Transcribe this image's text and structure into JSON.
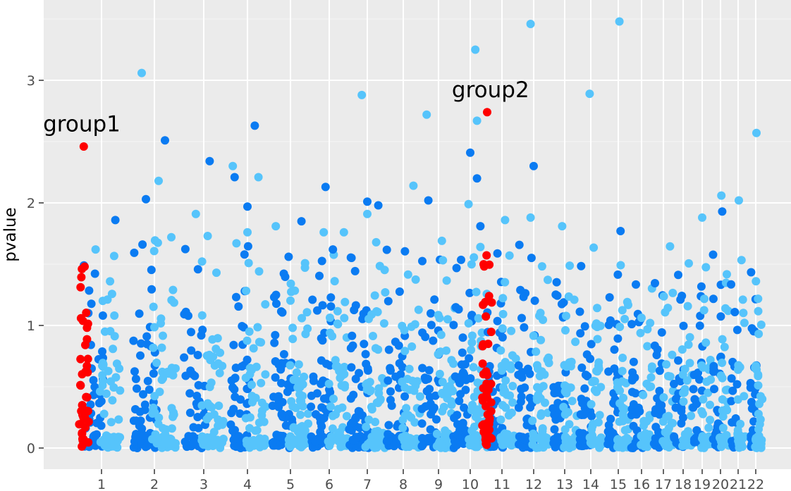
{
  "chart_data": {
    "type": "scatter",
    "title": "",
    "xlabel": "",
    "ylabel": "pvalue",
    "ylim": [
      -0.1,
      3.6
    ],
    "y_ticks": [
      0,
      1,
      2,
      3
    ],
    "grid": true,
    "x_tick_labels": [
      "1",
      "2",
      "3",
      "4",
      "5",
      "6",
      "7",
      "8",
      "9",
      "10",
      "11",
      "12",
      "13",
      "14",
      "15",
      "16",
      "17",
      "18",
      "19",
      "20",
      "21",
      "22"
    ],
    "colors": {
      "dark": "#0a7bf2",
      "light": "#56c4fb",
      "highlight": "#ff0000"
    },
    "clusters": [
      {
        "label": "1",
        "bands": [
          [
            0,
            0.1,
            42
          ],
          [
            0.1,
            0.7,
            42
          ],
          [
            0.7,
            1.3,
            15
          ],
          [
            1.3,
            1.7,
            4
          ]
        ],
        "extra": [
          [
            -0.15,
            1.62
          ],
          [
            0.35,
            1.86
          ]
        ]
      },
      {
        "label": "2",
        "bands": [
          [
            0,
            0.1,
            50
          ],
          [
            0.1,
            0.7,
            52
          ],
          [
            0.7,
            1.3,
            20
          ],
          [
            1.3,
            1.7,
            6
          ]
        ],
        "extra": [
          [
            -0.3,
            3.06
          ],
          [
            -0.2,
            2.03
          ],
          [
            0.1,
            2.18
          ],
          [
            0.25,
            2.51
          ],
          [
            0.4,
            1.72
          ]
        ]
      },
      {
        "label": "3",
        "bands": [
          [
            0,
            0.1,
            42
          ],
          [
            0.1,
            0.7,
            42
          ],
          [
            0.7,
            1.3,
            18
          ],
          [
            1.3,
            1.7,
            4
          ]
        ],
        "extra": [
          [
            -0.2,
            1.91
          ],
          [
            0.15,
            2.34
          ],
          [
            0.1,
            1.73
          ]
        ]
      },
      {
        "label": "4",
        "bands": [
          [
            0,
            0.1,
            42
          ],
          [
            0.1,
            0.7,
            45
          ],
          [
            0.7,
            1.3,
            15
          ],
          [
            1.3,
            1.7,
            4
          ]
        ],
        "extra": [
          [
            -0.4,
            2.3
          ],
          [
            -0.35,
            2.21
          ],
          [
            -0.3,
            1.67
          ],
          [
            0.2,
            2.63
          ],
          [
            0.3,
            2.21
          ],
          [
            0,
            1.97
          ],
          [
            0,
            1.76
          ]
        ]
      },
      {
        "label": "5",
        "bands": [
          [
            0,
            0.1,
            45
          ],
          [
            0.1,
            0.7,
            55
          ],
          [
            0.7,
            1.3,
            18
          ],
          [
            1.3,
            1.7,
            6
          ]
        ],
        "extra": [
          [
            -0.4,
            1.81
          ],
          [
            0.3,
            1.85
          ]
        ]
      },
      {
        "label": "6",
        "bands": [
          [
            0,
            0.1,
            48
          ],
          [
            0.1,
            0.7,
            50
          ],
          [
            0.7,
            1.3,
            20
          ],
          [
            1.3,
            1.7,
            4
          ]
        ],
        "extra": [
          [
            -0.15,
            1.76
          ],
          [
            -0.1,
            2.13
          ],
          [
            0.4,
            1.76
          ],
          [
            0.1,
            1.62
          ]
        ]
      },
      {
        "label": "7",
        "bands": [
          [
            0,
            0.1,
            45
          ],
          [
            0.1,
            0.7,
            50
          ],
          [
            0.7,
            1.3,
            20
          ],
          [
            1.3,
            1.7,
            6
          ]
        ],
        "extra": [
          [
            -0.15,
            2.88
          ],
          [
            0,
            2.01
          ],
          [
            0,
            1.91
          ],
          [
            0.3,
            1.98
          ]
        ]
      },
      {
        "label": "8",
        "bands": [
          [
            0,
            0.1,
            40
          ],
          [
            0.1,
            0.7,
            40
          ],
          [
            0.7,
            1.3,
            14
          ],
          [
            1.3,
            1.7,
            3
          ]
        ],
        "extra": [
          [
            0.3,
            2.14
          ]
        ]
      },
      {
        "label": "9",
        "bands": [
          [
            0,
            0.1,
            42
          ],
          [
            0.1,
            0.7,
            42
          ],
          [
            0.7,
            1.3,
            18
          ],
          [
            1.3,
            1.7,
            3
          ]
        ],
        "extra": [
          [
            -0.35,
            2.72
          ],
          [
            -0.3,
            2.02
          ],
          [
            0.1,
            1.69
          ]
        ]
      },
      {
        "label": "10",
        "bands": [
          [
            0,
            0.1,
            50
          ],
          [
            0.1,
            0.7,
            50
          ],
          [
            0.7,
            1.3,
            20
          ],
          [
            1.3,
            1.7,
            4
          ]
        ],
        "extra": [
          [
            0.15,
            3.25
          ],
          [
            0,
            2.41
          ],
          [
            0.2,
            2.67
          ],
          [
            0.2,
            2.2
          ],
          [
            -0.05,
            1.99
          ],
          [
            0.3,
            1.81
          ],
          [
            0.3,
            1.64
          ]
        ]
      },
      {
        "label": "11",
        "bands": [
          [
            0,
            0.1,
            40
          ],
          [
            0.1,
            0.7,
            40
          ],
          [
            0.7,
            1.3,
            16
          ],
          [
            1.3,
            1.7,
            4
          ]
        ],
        "extra": [
          [
            0.1,
            1.86
          ]
        ]
      },
      {
        "label": "12",
        "bands": [
          [
            0,
            0.1,
            40
          ],
          [
            0.1,
            0.7,
            42
          ],
          [
            0.7,
            1.3,
            16
          ],
          [
            1.3,
            1.7,
            4
          ]
        ],
        "extra": [
          [
            -0.1,
            3.46
          ],
          [
            0,
            2.3
          ],
          [
            -0.1,
            1.88
          ]
        ]
      },
      {
        "label": "13",
        "bands": [
          [
            0,
            0.1,
            35
          ],
          [
            0.1,
            0.7,
            35
          ],
          [
            0.7,
            1.3,
            12
          ],
          [
            1.3,
            1.7,
            2
          ]
        ],
        "extra": [
          [
            -0.1,
            1.81
          ]
        ]
      },
      {
        "label": "14",
        "bands": [
          [
            0,
            0.1,
            35
          ],
          [
            0.1,
            0.7,
            35
          ],
          [
            0.7,
            1.3,
            12
          ],
          [
            1.3,
            1.7,
            2
          ]
        ],
        "extra": [
          [
            -0.05,
            2.89
          ]
        ]
      },
      {
        "label": "15",
        "bands": [
          [
            0,
            0.1,
            35
          ],
          [
            0.1,
            0.7,
            38
          ],
          [
            0.7,
            1.3,
            12
          ],
          [
            1.3,
            1.7,
            2
          ]
        ],
        "extra": [
          [
            0.05,
            3.48
          ],
          [
            0.1,
            1.77
          ]
        ]
      },
      {
        "label": "16",
        "bands": [
          [
            0,
            0.1,
            30
          ],
          [
            0.1,
            0.7,
            30
          ],
          [
            0.7,
            1.3,
            10
          ],
          [
            1.3,
            1.7,
            2
          ]
        ],
        "extra": []
      },
      {
        "label": "17",
        "bands": [
          [
            0,
            0.1,
            30
          ],
          [
            0.1,
            0.7,
            30
          ],
          [
            0.7,
            1.3,
            10
          ],
          [
            1.3,
            1.7,
            2
          ]
        ],
        "extra": []
      },
      {
        "label": "18",
        "bands": [
          [
            0,
            0.1,
            25
          ],
          [
            0.1,
            0.7,
            25
          ],
          [
            0.7,
            1.3,
            8
          ],
          [
            1.3,
            1.7,
            2
          ]
        ],
        "extra": []
      },
      {
        "label": "19",
        "bands": [
          [
            0,
            0.1,
            25
          ],
          [
            0.1,
            0.7,
            25
          ],
          [
            0.7,
            1.3,
            8
          ],
          [
            1.3,
            1.7,
            2
          ]
        ],
        "extra": [
          [
            0,
            1.88
          ]
        ]
      },
      {
        "label": "20",
        "bands": [
          [
            0,
            0.1,
            25
          ],
          [
            0.1,
            0.7,
            25
          ],
          [
            0.7,
            1.3,
            8
          ],
          [
            1.3,
            1.7,
            3
          ]
        ],
        "extra": [
          [
            0.05,
            2.06
          ],
          [
            0.1,
            1.93
          ]
        ]
      },
      {
        "label": "21",
        "bands": [
          [
            0,
            0.1,
            20
          ],
          [
            0.1,
            0.7,
            18
          ],
          [
            0.7,
            1.3,
            6
          ],
          [
            1.3,
            1.7,
            2
          ]
        ],
        "extra": [
          [
            0.05,
            2.02
          ]
        ]
      },
      {
        "label": "22",
        "bands": [
          [
            0,
            0.1,
            25
          ],
          [
            0.1,
            0.7,
            25
          ],
          [
            0.7,
            1.3,
            8
          ],
          [
            1.3,
            1.7,
            2
          ]
        ],
        "extra": [
          [
            0.05,
            2.57
          ]
        ]
      }
    ],
    "highlight_clusters": [
      {
        "group": "group1",
        "x_cluster": 1,
        "offset": -0.45,
        "count": 42,
        "peak": 2.46
      },
      {
        "group": "group2",
        "x_cluster": 10,
        "offset": 0.5,
        "count": 50,
        "peak": 2.74
      }
    ],
    "annotations": [
      {
        "text": "group1",
        "x_cluster": 1,
        "offset": -0.5,
        "y": 2.64
      },
      {
        "text": "group2",
        "x_cluster": 10,
        "offset": 0.6,
        "y": 2.92
      }
    ]
  }
}
